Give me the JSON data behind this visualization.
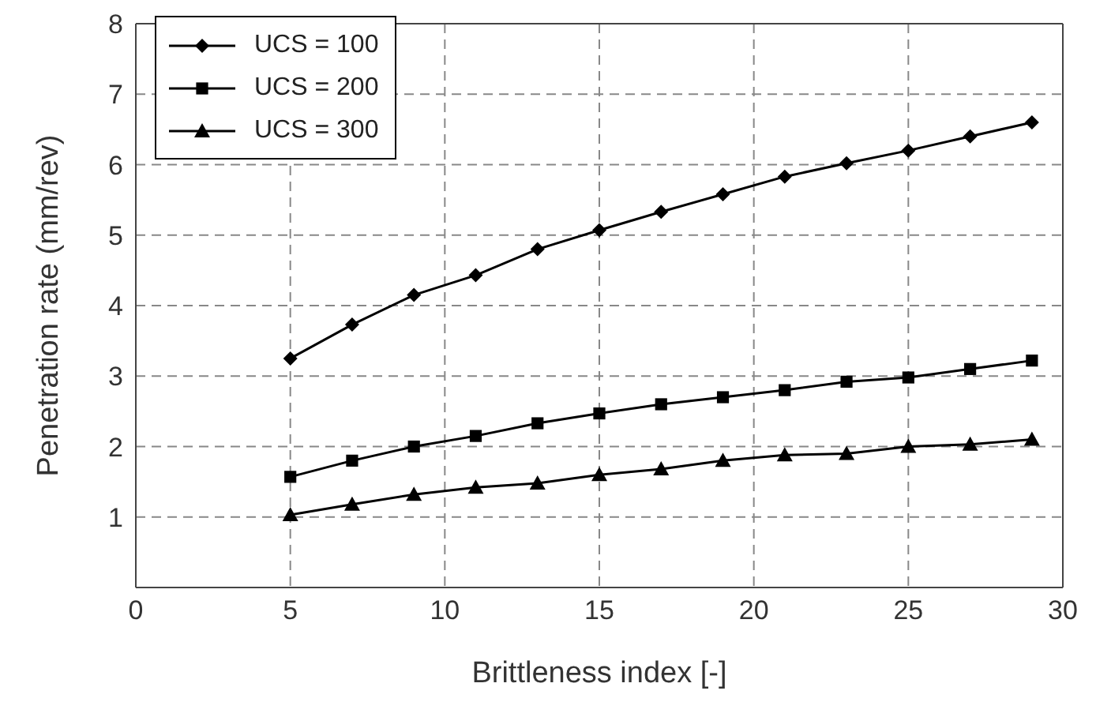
{
  "chart_data": {
    "type": "line",
    "xlabel": "Brittleness index [-]",
    "ylabel": "Penetration rate (mm/rev)",
    "x": [
      5,
      7,
      9,
      11,
      13,
      15,
      17,
      19,
      21,
      23,
      25,
      27,
      29
    ],
    "xlim": [
      0,
      30
    ],
    "xticks": [
      0,
      5,
      10,
      15,
      20,
      25,
      30
    ],
    "ylim": [
      0,
      8
    ],
    "yticks": [
      1,
      2,
      3,
      4,
      5,
      6,
      7,
      8
    ],
    "grid": true,
    "legend": "top left",
    "line_style": "solid",
    "series": [
      {
        "name": "UCS = 100",
        "color": "#000000",
        "marker": "diamond",
        "values": [
          3.25,
          3.73,
          4.15,
          4.43,
          4.8,
          5.07,
          5.33,
          5.58,
          5.83,
          6.02,
          6.2,
          6.4,
          6.6
        ]
      },
      {
        "name": "UCS = 200",
        "color": "#000000",
        "marker": "square",
        "values": [
          1.57,
          1.8,
          2.0,
          2.15,
          2.33,
          2.47,
          2.6,
          2.7,
          2.8,
          2.92,
          2.98,
          3.1,
          3.22
        ]
      },
      {
        "name": "UCS = 300",
        "color": "#000000",
        "marker": "triangle",
        "values": [
          1.03,
          1.18,
          1.32,
          1.42,
          1.48,
          1.6,
          1.68,
          1.8,
          1.88,
          1.9,
          2.0,
          2.03,
          2.1
        ]
      }
    ]
  }
}
